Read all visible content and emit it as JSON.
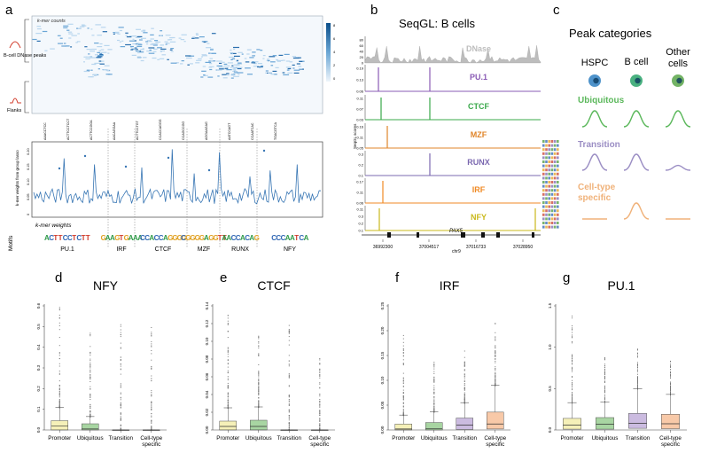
{
  "figure": {
    "panels": {
      "a": {
        "letter": "a",
        "heatmap_title": "k-mer counts",
        "row_group_top": "B-cell DNase peaks",
        "row_group_bottom": "Flanks",
        "colorbar_ticks": [
          "8",
          "6",
          "4",
          "2",
          "0"
        ],
        "kmer_labels": [
          "AAACCTCC",
          "ACTTCCTCCT",
          "ACTTCCGGA",
          "AACAGGAA",
          "ACTTCCTGT",
          "CCACCAGGG",
          "CCAGCCGG",
          "AGGAAGAG",
          "AATCCAGT",
          "CCAATCAC",
          "TGACGTCA"
        ],
        "line_ylabel": "k-mer weights from group lasso",
        "line_yticks": [
          "0",
          "0.05",
          "0.10",
          "0.15",
          "0.20"
        ],
        "line_xlabel": "k-mer weights",
        "motifs_label": "Motifs",
        "motifs": [
          {
            "logo": "ACTTCCTCTT",
            "name": "PU.1",
            "color": "#3b6cb5"
          },
          {
            "logo": "GAAGTGAAA",
            "name": "IRF",
            "color": "#d8732a"
          },
          {
            "logo": "CCACCAGGGG",
            "name": "CTCF",
            "color": "#3a9a4a"
          },
          {
            "logo": "CGGGGAGGTT",
            "name": "MZF",
            "color": "#e08b2c"
          },
          {
            "logo": "AACCACAG",
            "name": "RUNX",
            "color": "#3a9a4a"
          },
          {
            "logo": "CCCAATCA",
            "name": "NFY",
            "color": "#3a9a4a"
          }
        ]
      },
      "b": {
        "letter": "b",
        "title": "SeqGL: B cells",
        "ylabel": "SeqGL scores",
        "tracks": [
          {
            "name": "DNase",
            "color": "#bdbdbd",
            "ticks": [
              "80",
              "60",
              "40",
              "20",
              "0"
            ]
          },
          {
            "name": "PU.1",
            "color": "#8a5bb5",
            "ticks": [
              "0.19",
              "0.13",
              "0.06"
            ]
          },
          {
            "name": "CTCF",
            "color": "#39a84a",
            "ticks": [
              "0.11",
              "0.07",
              "0.03"
            ]
          },
          {
            "name": "MZF",
            "color": "#e0852a",
            "ticks": [
              "0.16",
              "0.11",
              "0.05"
            ]
          },
          {
            "name": "RUNX",
            "color": "#7b68b0",
            "ticks": [
              "0.3",
              "0.2",
              "0.1"
            ]
          },
          {
            "name": "IRF",
            "color": "#f08a24",
            "ticks": [
              "0.17",
              "0.11",
              "0.06"
            ]
          },
          {
            "name": "NFY",
            "color": "#c9b81a",
            "ticks": [
              "0.11",
              "0.3",
              "0.2",
              "0.1"
            ]
          }
        ],
        "gene": "PAX5",
        "coords": [
          "36992300",
          "37004517",
          "37016733",
          "37028950"
        ],
        "chrom": "chr9"
      },
      "c": {
        "letter": "c",
        "title": "Peak categories",
        "columns": [
          "HSPC",
          "B cell",
          "Other cells"
        ],
        "rows": [
          {
            "label": "Ubiquitous",
            "color": "#5cb85c"
          },
          {
            "label": "Transition",
            "color": "#9b8ec4"
          },
          {
            "label": "Cell-type specific",
            "color": "#f0b27a"
          }
        ]
      }
    }
  },
  "chart_data": [
    {
      "panel": "d",
      "type": "box",
      "title": "NFY",
      "categories": [
        "Promoter",
        "Ubiquitous",
        "Transition",
        "Cell-type specific"
      ],
      "colors": [
        "#f5f0b8",
        "#a8d5a2",
        "#ffffff",
        "#ffffff"
      ],
      "ylim": [
        0,
        0.6
      ],
      "yticks": [
        0.0,
        0.1,
        0.2,
        0.3,
        0.4,
        0.5,
        0.6
      ],
      "boxes": [
        {
          "q1": 0.0,
          "median": 0.02,
          "q3": 0.045,
          "whisker_high": 0.11,
          "max": 0.6
        },
        {
          "q1": 0.0,
          "median": 0.005,
          "q3": 0.03,
          "whisker_high": 0.065,
          "max": 0.48
        },
        {
          "q1": 0.0,
          "median": 0.0,
          "q3": 0.0,
          "whisker_high": 0.0,
          "max": 0.52
        },
        {
          "q1": 0.0,
          "median": 0.0,
          "q3": 0.0,
          "whisker_high": 0.0,
          "max": 0.5
        }
      ]
    },
    {
      "panel": "e",
      "type": "box",
      "title": "CTCF",
      "categories": [
        "Promoter",
        "Ubiquitous",
        "Transition",
        "Cell-type specific"
      ],
      "colors": [
        "#f5f0b8",
        "#a8d5a2",
        "#ffffff",
        "#ffffff"
      ],
      "ylim": [
        0,
        0.14
      ],
      "yticks": [
        0.0,
        0.02,
        0.04,
        0.06,
        0.08,
        0.1,
        0.12,
        0.14
      ],
      "boxes": [
        {
          "q1": 0.0,
          "median": 0.004,
          "q3": 0.01,
          "whisker_high": 0.025,
          "max": 0.13
        },
        {
          "q1": 0.0,
          "median": 0.004,
          "q3": 0.011,
          "whisker_high": 0.026,
          "max": 0.11
        },
        {
          "q1": 0.0,
          "median": 0.0,
          "q3": 0.0,
          "whisker_high": 0.0,
          "max": 0.125
        },
        {
          "q1": 0.0,
          "median": 0.0,
          "q3": 0.0,
          "whisker_high": 0.0,
          "max": 0.085
        }
      ]
    },
    {
      "panel": "f",
      "type": "box",
      "title": "IRF",
      "categories": [
        "Promoter",
        "Ubiquitous",
        "Transition",
        "Cell-type specific"
      ],
      "colors": [
        "#f5f0b8",
        "#a8d5a2",
        "#cbbbe0",
        "#f8c9a8"
      ],
      "ylim": [
        0,
        0.25
      ],
      "yticks": [
        0.0,
        0.05,
        0.1,
        0.15,
        0.2,
        0.25
      ],
      "boxes": [
        {
          "q1": 0.0,
          "median": 0.002,
          "q3": 0.012,
          "whisker_high": 0.03,
          "max": 0.195
        },
        {
          "q1": 0.0,
          "median": 0.003,
          "q3": 0.015,
          "whisker_high": 0.037,
          "max": 0.14
        },
        {
          "q1": 0.001,
          "median": 0.01,
          "q3": 0.024,
          "whisker_high": 0.055,
          "max": 0.16
        },
        {
          "q1": 0.002,
          "median": 0.012,
          "q3": 0.036,
          "whisker_high": 0.09,
          "max": 0.225
        }
      ]
    },
    {
      "panel": "g",
      "type": "box",
      "title": "PU.1",
      "categories": [
        "Promoter",
        "Ubiquitous",
        "Transition",
        "Cell-type specific"
      ],
      "colors": [
        "#f5f0b8",
        "#a8d5a2",
        "#cbbbe0",
        "#f8c9a8"
      ],
      "ylim": [
        0,
        1.5
      ],
      "yticks": [
        0.0,
        0.5,
        1.0,
        1.5
      ],
      "boxes": [
        {
          "q1": 0.01,
          "median": 0.06,
          "q3": 0.14,
          "whisker_high": 0.33,
          "max": 1.45
        },
        {
          "q1": 0.01,
          "median": 0.07,
          "q3": 0.15,
          "whisker_high": 0.34,
          "max": 0.9
        },
        {
          "q1": 0.02,
          "median": 0.08,
          "q3": 0.2,
          "whisker_high": 0.5,
          "max": 1.0
        },
        {
          "q1": 0.015,
          "median": 0.075,
          "q3": 0.19,
          "whisker_high": 0.43,
          "max": 0.85
        }
      ]
    }
  ]
}
